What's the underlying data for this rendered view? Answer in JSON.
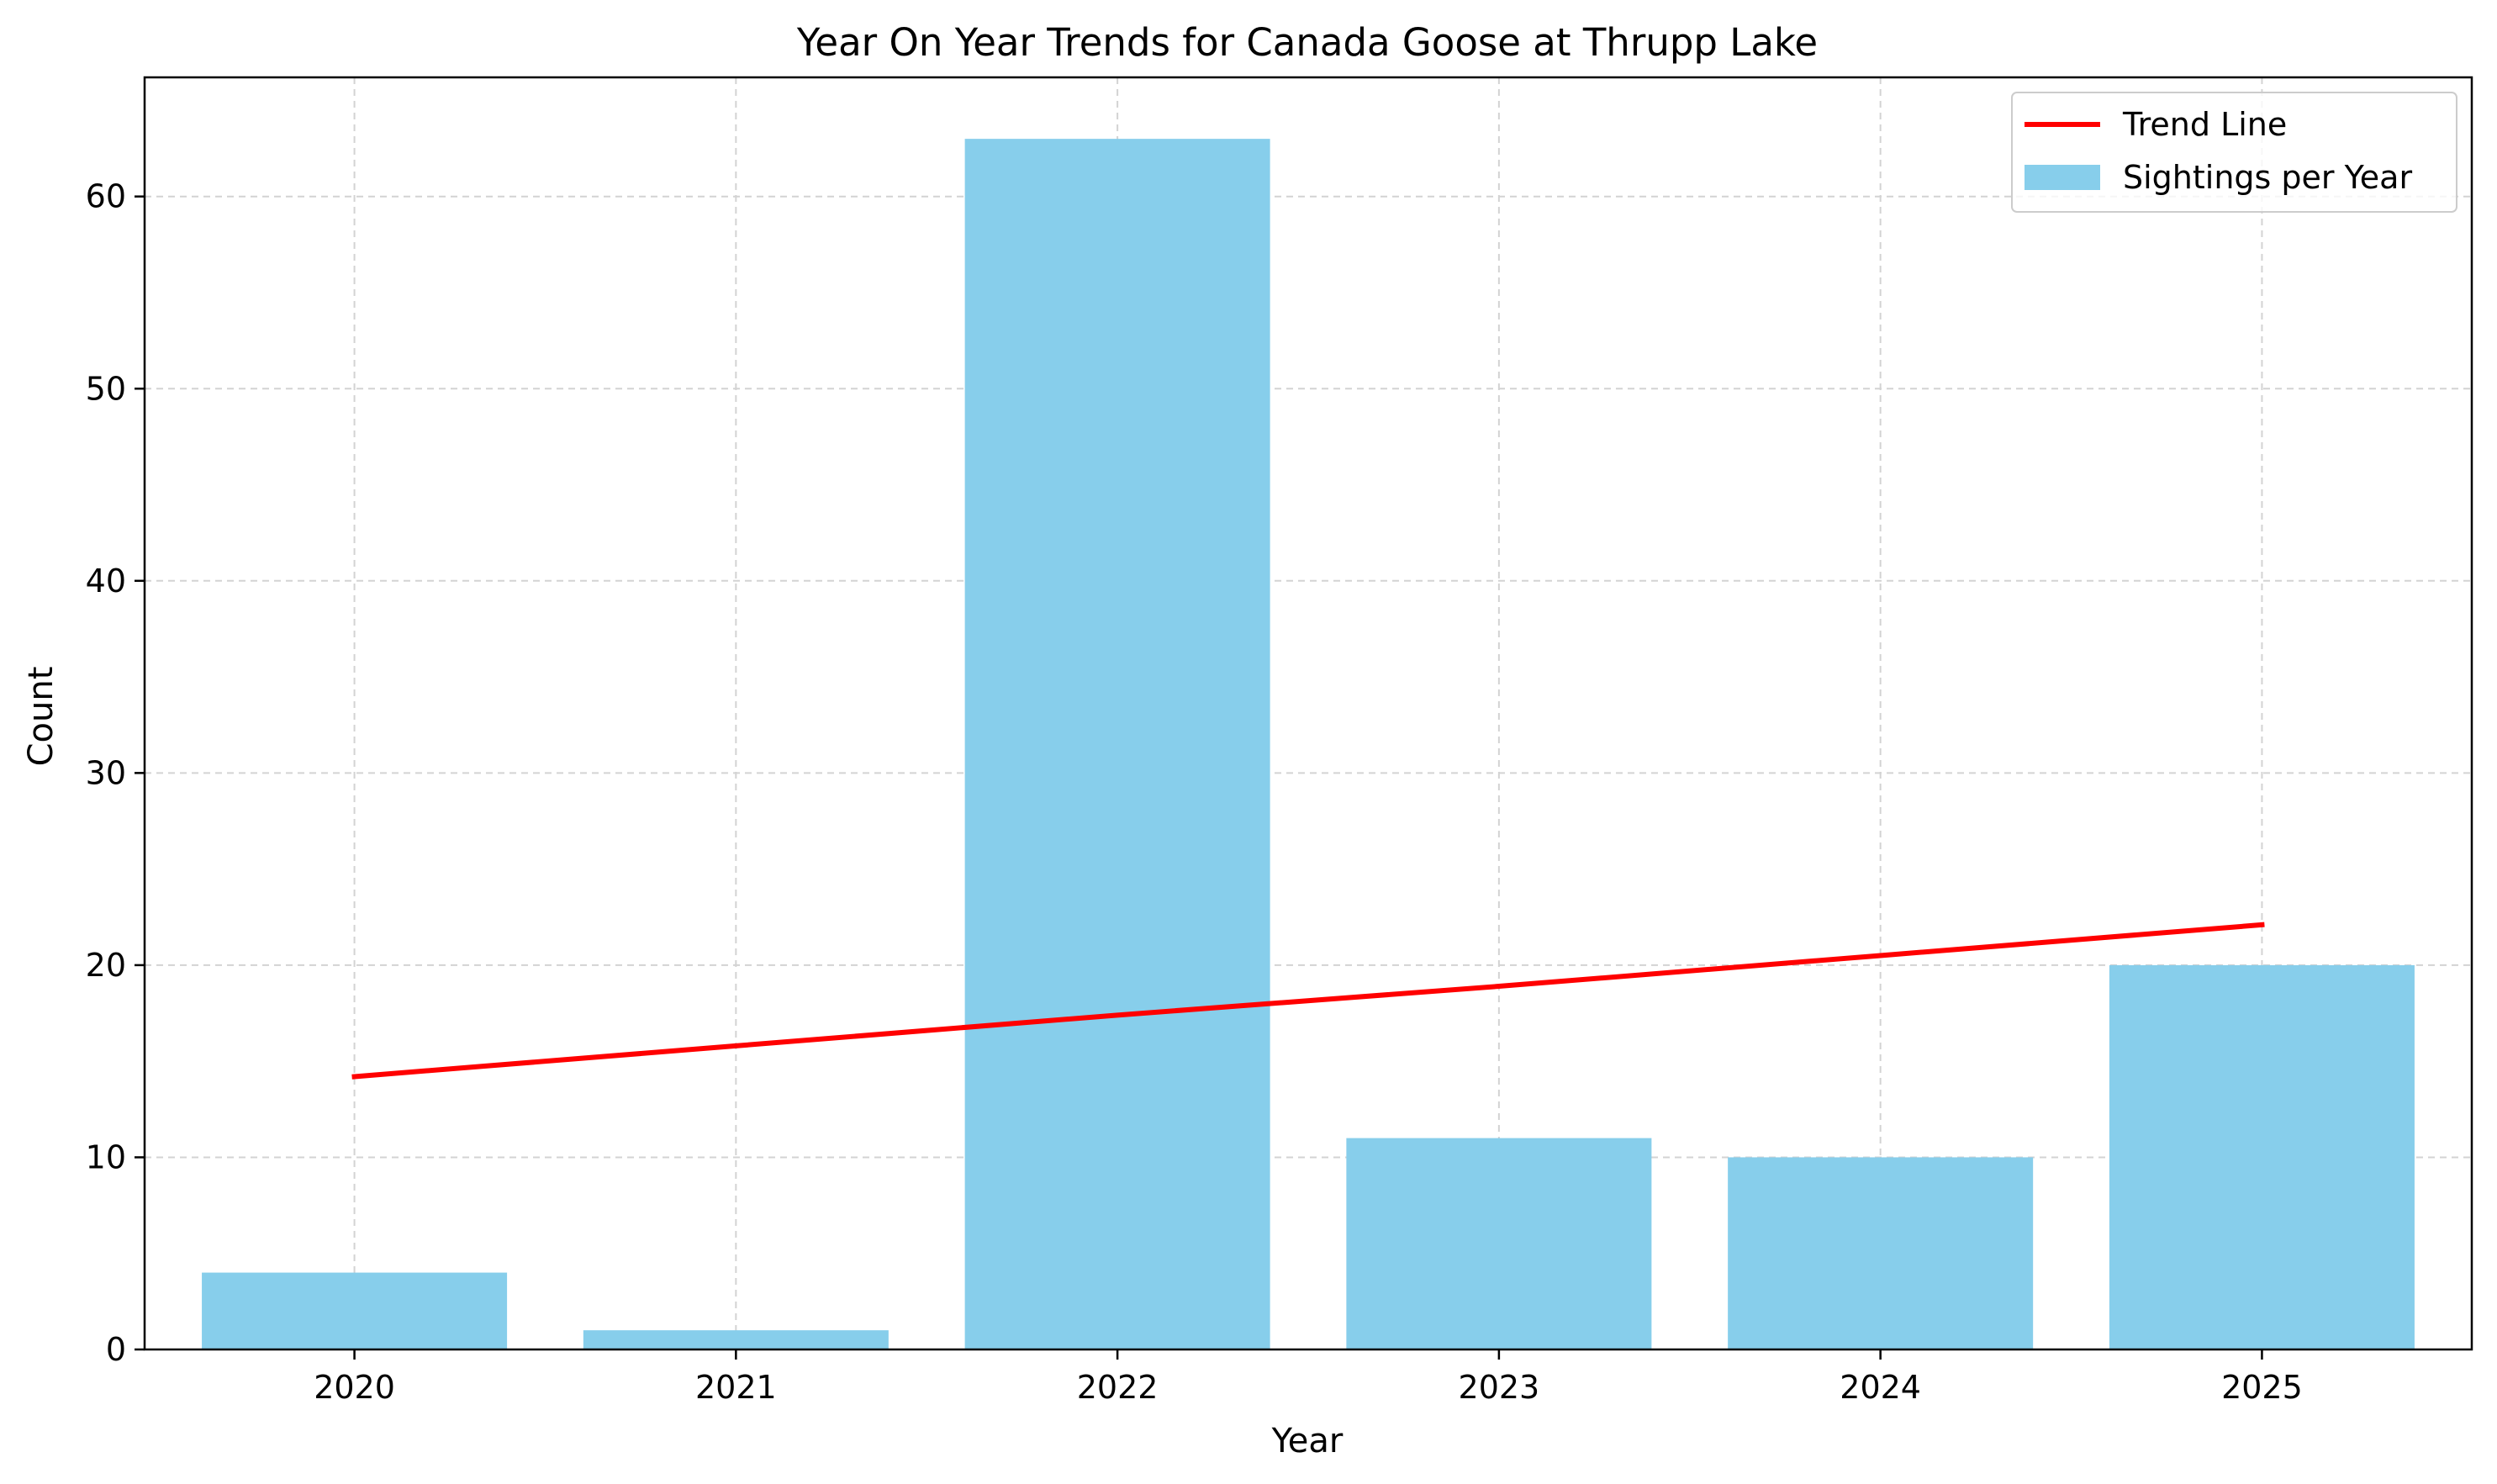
{
  "chart_data": {
    "type": "bar",
    "title": "Year On Year Trends for Canada Goose at Thrupp Lake",
    "xlabel": "Year",
    "ylabel": "Count",
    "categories": [
      "2020",
      "2021",
      "2022",
      "2023",
      "2024",
      "2025"
    ],
    "series": [
      {
        "name": "Sightings per Year",
        "type": "bar",
        "color": "#87ceeb",
        "values": [
          4,
          1,
          63,
          11,
          10,
          20
        ]
      },
      {
        "name": "Trend Line",
        "type": "line",
        "color": "#ff0000",
        "values": [
          14.2,
          15.8,
          17.4,
          18.9,
          20.5,
          22.1
        ]
      }
    ],
    "ylim": [
      0,
      66.2
    ],
    "yticks": [
      0,
      10,
      20,
      30,
      40,
      50,
      60
    ],
    "grid": true,
    "grid_style": "dashed",
    "legend_position": "top-right",
    "legend_order": [
      "Trend Line",
      "Sightings per Year"
    ]
  }
}
